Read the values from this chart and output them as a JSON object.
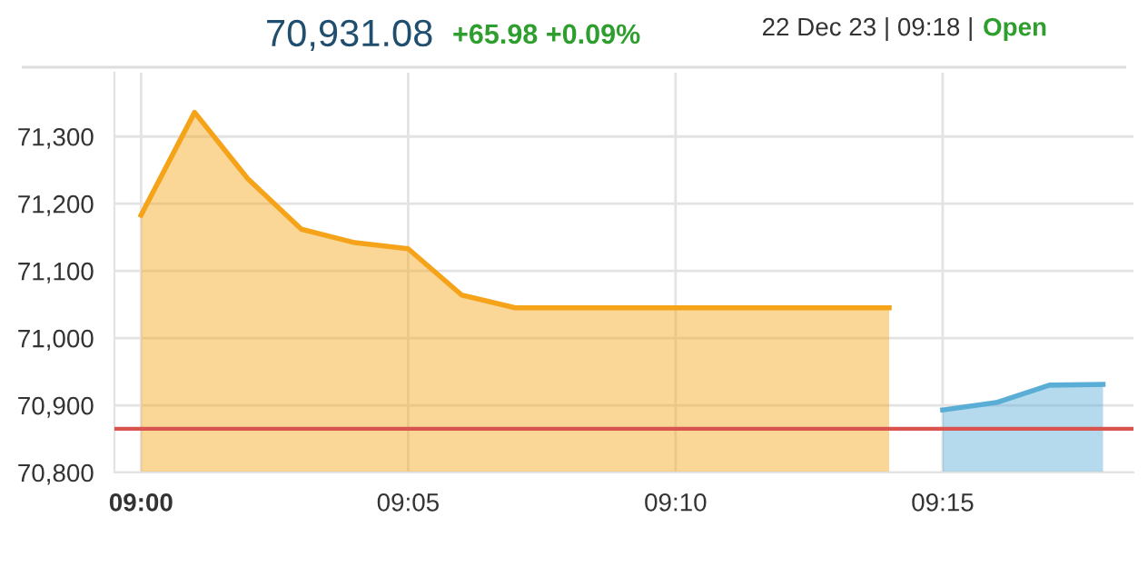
{
  "chart_data": {
    "type": "area",
    "title": "70,931.08",
    "subtitle": "+65.98 +0.09%",
    "annotations": [
      "22 Dec 23 | 09:18 | ",
      "Open"
    ],
    "series": [
      {
        "color": "#f5a318",
        "x": [
          9.0,
          9.0167,
          9.0333,
          9.05,
          9.0667,
          9.0833,
          9.1,
          9.1167,
          9.1333,
          9.15,
          9.1667,
          9.1833,
          9.2,
          9.2167,
          9.2333
        ],
        "values": [
          71183,
          71336,
          71237,
          71162,
          71142,
          71133,
          71064,
          71045,
          71045,
          71045,
          71045,
          71045,
          71045,
          71045,
          71045
        ]
      },
      {
        "color": "#5aaed6",
        "x": [
          9.25,
          9.2667,
          9.2833,
          9.3
        ],
        "values": [
          70893,
          70904,
          70930,
          70931
        ]
      }
    ],
    "ref_lines": [
      {
        "axis": "y",
        "value": 70865.1,
        "color": "#d9534f"
      }
    ],
    "xlim": [
      8.9917,
      9.3095
    ],
    "ylim": [
      70800,
      71395
    ],
    "xticks": [
      {
        "value": 9.0,
        "label": "09:00"
      },
      {
        "value": 9.0833,
        "label": "09:05"
      },
      {
        "value": 9.1667,
        "label": "09:10"
      },
      {
        "value": 9.25,
        "label": "09:15"
      }
    ],
    "yticks": [
      {
        "value": 70800,
        "label": "70,800"
      },
      {
        "value": 70900,
        "label": "70,900"
      },
      {
        "value": 71000,
        "label": "71,000"
      },
      {
        "value": 71100,
        "label": "71,100"
      },
      {
        "value": 71200,
        "label": "71,200"
      },
      {
        "value": 71300,
        "label": "71,300"
      }
    ],
    "grid": true,
    "legend": false
  }
}
